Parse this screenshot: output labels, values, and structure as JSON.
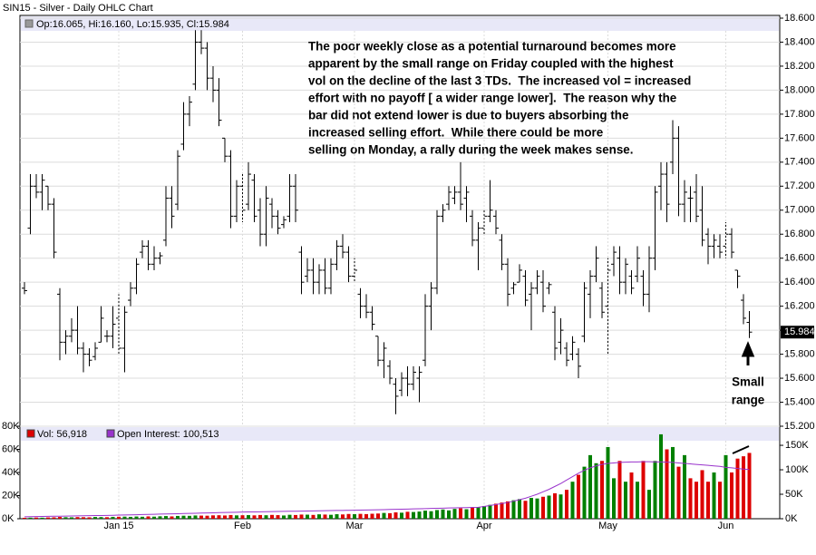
{
  "chart_data": [
    {
      "type": "ohlc",
      "title": "SIN15 - Silver - Daily OHLC Chart",
      "info_label": "Op:16.065, Hi:16.160, Lo:15.935, Cl:15.984",
      "color": "#000000",
      "ylim": [
        15.2,
        18.6
      ],
      "yticks": [
        {
          "value": 15.2,
          "label": "15.200"
        },
        {
          "value": 15.4,
          "label": "15.400"
        },
        {
          "value": 15.6,
          "label": "15.600"
        },
        {
          "value": 15.8,
          "label": "15.800"
        },
        {
          "value": 16.0,
          "label": "16.000"
        },
        {
          "value": 16.2,
          "label": "16.200"
        },
        {
          "value": 16.4,
          "label": "16.400"
        },
        {
          "value": 16.6,
          "label": "16.600"
        },
        {
          "value": 16.8,
          "label": "16.800"
        },
        {
          "value": 17.0,
          "label": "17.000"
        },
        {
          "value": 17.2,
          "label": "17.200"
        },
        {
          "value": 17.4,
          "label": "17.400"
        },
        {
          "value": 17.6,
          "label": "17.600"
        },
        {
          "value": 17.8,
          "label": "17.800"
        },
        {
          "value": 18.0,
          "label": "18.000"
        },
        {
          "value": 18.2,
          "label": "18.200"
        },
        {
          "value": 18.4,
          "label": "18.400"
        },
        {
          "value": 18.6,
          "label": "18.600"
        }
      ],
      "grid": true,
      "last_value_label": "15.984",
      "annotation": [
        "The poor weekly close as a potential turnaround becomes more",
        "apparent by the small range on Friday coupled with the highest",
        "vol on the decline of the last 3 TDs.  The increased vol = increased",
        "effort with no payoff [ a wider range lower].  The reason why the",
        "bar did not extend lower is due to buyers absorbing the",
        "increased selling effort.  While there could be more",
        "selling on Monday, a rally during the week makes sense."
      ],
      "callout": [
        "Small",
        "range"
      ],
      "open": [
        16.35,
        16.85,
        17.2,
        17.15,
        17.2,
        17.05,
        16.3,
        15.9,
        15.95,
        16.0,
        15.85,
        15.8,
        15.78,
        15.9,
        15.95,
        15.95,
        16.1,
        15.85,
        16.25,
        16.35,
        16.65,
        16.7,
        16.55,
        16.6,
        16.75,
        17.1,
        17.05,
        17.55,
        17.8,
        18.05,
        18.4,
        18.35,
        18.1,
        18.0,
        17.6,
        17.45,
        16.95,
        17.2,
        17.05,
        17.25,
        17.0,
        16.8,
        17.05,
        16.95,
        16.88,
        16.95,
        17.2,
        16.65,
        16.45,
        16.5,
        16.4,
        16.5,
        16.35,
        16.55,
        16.7,
        16.65,
        16.45,
        16.3,
        16.2,
        16.15,
        15.95,
        15.75,
        15.7,
        15.55,
        15.5,
        15.6,
        15.55,
        15.6,
        15.75,
        16.2,
        16.35,
        16.95,
        17.05,
        17.1,
        17.15,
        17.1,
        16.95,
        16.75,
        16.85,
        16.95,
        16.95,
        16.75,
        16.55,
        16.35,
        16.4,
        16.45,
        16.3,
        16.35,
        16.4,
        16.35,
        16.15,
        15.9,
        15.85,
        15.8,
        15.8,
        15.95,
        16.3,
        16.45,
        16.35,
        16.2,
        16.55,
        16.6,
        16.4,
        16.45,
        16.45,
        16.45,
        16.3,
        16.6,
        17.2,
        17.3,
        17.4,
        17.6,
        17.05,
        17.1,
        17.15,
        17.0,
        16.8,
        16.7,
        16.7,
        16.7,
        16.8,
        16.5,
        16.25,
        16.065
      ],
      "high": [
        16.4,
        17.3,
        17.3,
        17.3,
        17.2,
        17.1,
        16.35,
        16.0,
        16.1,
        16.2,
        15.9,
        15.85,
        15.9,
        16.2,
        16.0,
        16.2,
        16.3,
        16.2,
        16.4,
        16.6,
        16.75,
        16.75,
        16.7,
        16.65,
        17.2,
        17.2,
        17.5,
        17.9,
        17.95,
        18.5,
        18.5,
        18.4,
        18.2,
        18.1,
        17.6,
        17.5,
        17.25,
        17.3,
        17.4,
        17.3,
        17.1,
        17.2,
        17.1,
        17.0,
        16.95,
        17.3,
        17.3,
        16.7,
        16.6,
        16.6,
        16.55,
        16.6,
        16.6,
        16.75,
        16.8,
        16.7,
        16.6,
        16.35,
        16.3,
        16.2,
        15.95,
        15.9,
        15.75,
        15.6,
        15.65,
        15.7,
        15.7,
        15.7,
        16.3,
        16.4,
        17.0,
        17.05,
        17.2,
        17.2,
        17.4,
        17.2,
        17.0,
        16.9,
        17.0,
        17.25,
        17.0,
        16.8,
        16.6,
        16.4,
        16.55,
        16.5,
        16.4,
        16.5,
        16.5,
        16.4,
        16.2,
        16.1,
        15.9,
        15.95,
        15.85,
        16.4,
        16.5,
        16.7,
        16.4,
        16.6,
        16.7,
        16.7,
        16.6,
        16.5,
        16.7,
        16.5,
        16.7,
        17.2,
        17.4,
        17.4,
        17.75,
        17.7,
        17.25,
        17.2,
        17.3,
        17.2,
        16.85,
        16.8,
        16.8,
        16.9,
        16.85,
        16.5,
        16.3,
        16.16
      ],
      "low": [
        16.3,
        16.8,
        17.1,
        17.0,
        17.0,
        16.6,
        15.75,
        15.8,
        15.9,
        15.8,
        15.65,
        15.7,
        15.75,
        15.9,
        15.9,
        15.85,
        15.8,
        15.65,
        16.2,
        16.3,
        16.6,
        16.5,
        16.5,
        16.55,
        16.7,
        16.85,
        17.0,
        17.5,
        17.7,
        18.0,
        18.3,
        18.0,
        17.9,
        17.7,
        17.4,
        16.85,
        16.9,
        16.9,
        17.0,
        16.9,
        16.7,
        16.7,
        16.85,
        16.8,
        16.85,
        16.9,
        16.9,
        16.3,
        16.4,
        16.3,
        16.3,
        16.3,
        16.3,
        16.5,
        16.6,
        16.4,
        16.4,
        16.1,
        16.1,
        16.0,
        15.7,
        15.6,
        15.55,
        15.3,
        15.45,
        15.45,
        15.5,
        15.4,
        15.7,
        16.0,
        16.3,
        16.9,
        17.0,
        17.05,
        17.0,
        16.9,
        16.7,
        16.5,
        16.8,
        16.9,
        16.8,
        16.5,
        16.2,
        16.3,
        16.4,
        16.2,
        16.0,
        16.3,
        16.15,
        16.3,
        15.75,
        15.8,
        15.7,
        15.75,
        15.6,
        15.9,
        16.1,
        16.4,
        16.1,
        15.8,
        16.45,
        16.3,
        16.3,
        16.3,
        16.4,
        16.2,
        16.15,
        16.5,
        17.0,
        16.9,
        17.3,
        16.95,
        16.9,
        16.9,
        16.9,
        16.7,
        16.55,
        16.6,
        16.6,
        16.6,
        16.6,
        16.35,
        16.05,
        15.935
      ],
      "close": [
        16.33,
        17.2,
        17.15,
        17.25,
        17.05,
        16.65,
        15.9,
        15.95,
        16.0,
        15.85,
        15.8,
        15.75,
        15.85,
        16.1,
        15.95,
        16.05,
        15.85,
        16.15,
        16.35,
        16.55,
        16.7,
        16.55,
        16.6,
        16.62,
        17.1,
        16.95,
        17.45,
        17.8,
        17.9,
        18.4,
        18.35,
        18.1,
        18.0,
        17.75,
        17.45,
        16.95,
        17.2,
        17.0,
        17.3,
        16.95,
        16.8,
        17.1,
        16.95,
        16.85,
        16.92,
        17.2,
        17.0,
        16.4,
        16.5,
        16.4,
        16.5,
        16.35,
        16.55,
        16.7,
        16.65,
        16.45,
        16.5,
        16.2,
        16.15,
        16.05,
        15.75,
        15.85,
        15.6,
        15.45,
        15.6,
        15.55,
        15.65,
        15.65,
        16.2,
        16.35,
        16.95,
        17.0,
        17.15,
        17.15,
        17.05,
        17.15,
        16.75,
        16.85,
        16.95,
        17.0,
        16.85,
        16.55,
        16.3,
        16.38,
        16.5,
        16.25,
        16.35,
        16.45,
        16.2,
        16.38,
        15.85,
        16.0,
        15.75,
        15.9,
        15.7,
        16.35,
        16.45,
        16.6,
        16.15,
        16.5,
        16.65,
        16.4,
        16.55,
        16.35,
        16.6,
        16.3,
        16.6,
        17.15,
        17.3,
        17.05,
        17.6,
        17.05,
        17.15,
        17.1,
        16.95,
        16.75,
        16.7,
        16.75,
        16.65,
        16.8,
        16.65,
        16.45,
        16.1,
        15.984
      ]
    },
    {
      "type": "volume",
      "categories": [
        null,
        null,
        null,
        null,
        null,
        null,
        null,
        null,
        null,
        null,
        null,
        null,
        null,
        null,
        null,
        null,
        "Jan 15",
        null,
        null,
        null,
        null,
        null,
        null,
        null,
        null,
        null,
        null,
        null,
        null,
        null,
        null,
        null,
        null,
        null,
        null,
        null,
        null,
        "Feb",
        null,
        null,
        null,
        null,
        null,
        null,
        null,
        null,
        null,
        null,
        null,
        null,
        null,
        null,
        null,
        null,
        null,
        null,
        "Mar",
        null,
        null,
        null,
        null,
        null,
        null,
        null,
        null,
        null,
        null,
        null,
        null,
        null,
        null,
        null,
        null,
        null,
        null,
        null,
        null,
        null,
        "Apr",
        null,
        null,
        null,
        null,
        null,
        null,
        null,
        null,
        null,
        null,
        null,
        null,
        null,
        null,
        null,
        null,
        null,
        null,
        null,
        null,
        "May",
        null,
        null,
        null,
        null,
        null,
        null,
        null,
        null,
        null,
        null,
        null,
        null,
        null,
        null,
        null,
        null,
        null,
        null,
        null,
        "Jun",
        null,
        null,
        null,
        null
      ],
      "up_color": "#008000",
      "down_color": "#dd0000",
      "ylim": [
        0,
        80000
      ],
      "yticks": [
        {
          "value": 0,
          "label": "0K"
        },
        {
          "value": 20000,
          "label": "20K"
        },
        {
          "value": 40000,
          "label": "40K"
        },
        {
          "value": 60000,
          "label": "60K"
        },
        {
          "value": 80000,
          "label": "80K"
        }
      ],
      "y2lim": [
        0,
        189000
      ],
      "y2ticks": [
        {
          "value": 0,
          "label": "0K"
        },
        {
          "value": 50000,
          "label": "50K"
        },
        {
          "value": 100000,
          "label": "100K"
        },
        {
          "value": 150000,
          "label": "150K"
        }
      ],
      "series": [
        {
          "name": "Vol: 56,918",
          "color": "#dd0000",
          "values": [
            800,
            900,
            1000,
            900,
            1100,
            1200,
            1500,
            1300,
            1200,
            1400,
            1300,
            1200,
            1500,
            1400,
            1300,
            1600,
            1700,
            1800,
            1600,
            1900,
            1700,
            2000,
            1800,
            2100,
            2300,
            2000,
            2400,
            2600,
            2500,
            2800,
            2700,
            2600,
            2900,
            3000,
            2800,
            3200,
            2900,
            3000,
            3100,
            2900,
            3200,
            3000,
            3300,
            3100,
            2800,
            3400,
            3200,
            3600,
            3500,
            3300,
            3800,
            3600,
            3400,
            3900,
            3700,
            4100,
            3900,
            4200,
            4000,
            4300,
            4500,
            5000,
            4800,
            5500,
            5200,
            6000,
            5800,
            6200,
            7000,
            6500,
            7500,
            8000,
            7200,
            8500,
            9000,
            8200,
            9500,
            10000,
            11000,
            12000,
            13000,
            14000,
            15000,
            16000,
            17000,
            15500,
            18000,
            17500,
            19000,
            20000,
            22000,
            21000,
            25000,
            32000,
            38000,
            45000,
            55000,
            48000,
            50000,
            62000,
            35000,
            50000,
            32000,
            40000,
            32000,
            50000,
            25000,
            50000,
            73000,
            60000,
            62000,
            45000,
            55000,
            35000,
            32000,
            42000,
            32000,
            40000,
            32000,
            55000,
            40000,
            52000,
            54000,
            56918
          ]
        },
        {
          "name": "Open Interest: 100,513",
          "color": "#9933cc",
          "axis": "y2",
          "values": [
            4000,
            4200,
            4400,
            4600,
            4800,
            5000,
            5200,
            5400,
            5600,
            5800,
            6000,
            6200,
            6400,
            6600,
            6800,
            7000,
            7300,
            7600,
            7900,
            8200,
            8500,
            8800,
            9100,
            9400,
            9700,
            10000,
            10300,
            10600,
            10900,
            11200,
            11500,
            11800,
            12100,
            12400,
            12700,
            13000,
            13300,
            13600,
            13800,
            14000,
            14200,
            14400,
            14600,
            14800,
            15000,
            15200,
            15400,
            15600,
            15800,
            16000,
            16200,
            16400,
            16600,
            16800,
            17000,
            17200,
            17400,
            17600,
            17800,
            18000,
            18300,
            18600,
            18900,
            19200,
            19500,
            19800,
            20100,
            20400,
            20700,
            21000,
            21300,
            21600,
            21900,
            22200,
            22500,
            22800,
            23100,
            23500,
            25000,
            27000,
            29000,
            31000,
            33000,
            36000,
            39000,
            42000,
            46000,
            50000,
            55000,
            60000,
            66000,
            72000,
            79000,
            86000,
            93000,
            99000,
            104000,
            108000,
            111000,
            113000,
            114000,
            115000,
            115500,
            116000,
            116000,
            116500,
            116500,
            116000,
            116000,
            115500,
            115000,
            114000,
            113000,
            112000,
            111000,
            110000,
            109000,
            108000,
            107000,
            105000,
            104000,
            102500,
            101500,
            100513
          ]
        }
      ]
    }
  ]
}
